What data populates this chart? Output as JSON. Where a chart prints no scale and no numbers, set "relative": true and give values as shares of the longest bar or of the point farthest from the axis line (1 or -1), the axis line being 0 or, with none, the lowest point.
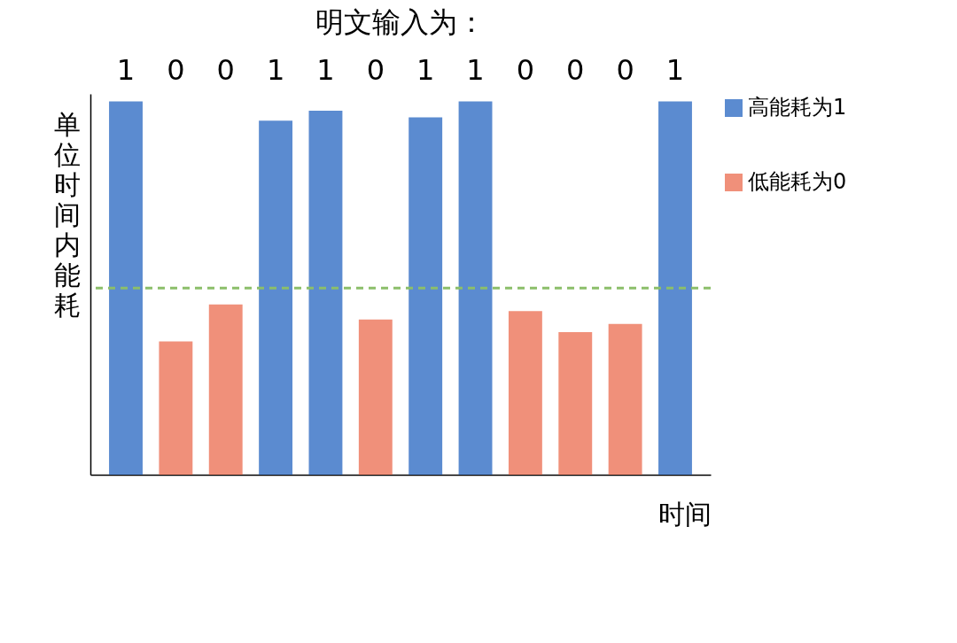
{
  "chart_data": {
    "type": "bar",
    "title": "明文输入为：",
    "xlabel": "时间",
    "ylabel": "单位时间内能耗",
    "relative": true,
    "categories": [
      "1",
      "0",
      "0",
      "1",
      "1",
      "0",
      "1",
      "1",
      "0",
      "0",
      "0",
      "1"
    ],
    "series": [
      {
        "name": "高能耗为1",
        "color": "#5b8bd0",
        "values": [
          1,
          null,
          null,
          0.948,
          0.975,
          null,
          0.957,
          1,
          null,
          null,
          null,
          1
        ]
      },
      {
        "name": "低能耗为0",
        "color": "#f0907a",
        "values": [
          null,
          0.357,
          0.456,
          null,
          null,
          0.416,
          null,
          null,
          0.438,
          0.382,
          0.404,
          null
        ]
      }
    ],
    "ref_lines": [
      {
        "axis": "y",
        "value": 0.5,
        "color": "#8cbf6a",
        "line_style": "dashed"
      }
    ],
    "legend": "right"
  }
}
